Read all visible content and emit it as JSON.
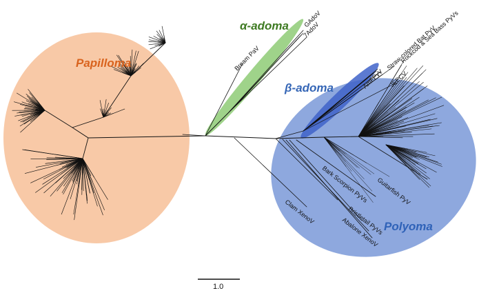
{
  "clades": {
    "papilloma": {
      "label": "Papilloma",
      "fill": "#f8c9a7",
      "text_color": "#d9631e"
    },
    "alpha": {
      "label": "α-adoma",
      "fill": "#9fd38a",
      "text_color": "#3e7a22"
    },
    "beta": {
      "label": "β-adoma",
      "fill": "#3f63c9",
      "text_color": "#3566b6"
    },
    "polyoma": {
      "label": "Polyoma",
      "fill": "#8ea8de",
      "text_color": "#2f62b8"
    }
  },
  "leaves": {
    "gadov": "GAdoV",
    "sevenadov": "7AdoV",
    "bream": "Bream PaV",
    "strawbat": "Straw-colored Bat PyV",
    "rockcod": "Rockcod & Sea Bass PyVs",
    "amfpyv": "AmFPyV",
    "jeecv": "JEECV",
    "barkscorpion": "Bark Scorpion PyVs",
    "guitarfish": "Guitarfish PyV",
    "bristletail": "Bristletail PyVs",
    "clam": "Clam XenoV",
    "abalone": "Abalone XenoV"
  },
  "scale_bar": {
    "label": "1.0"
  },
  "branch_color": "#111111"
}
